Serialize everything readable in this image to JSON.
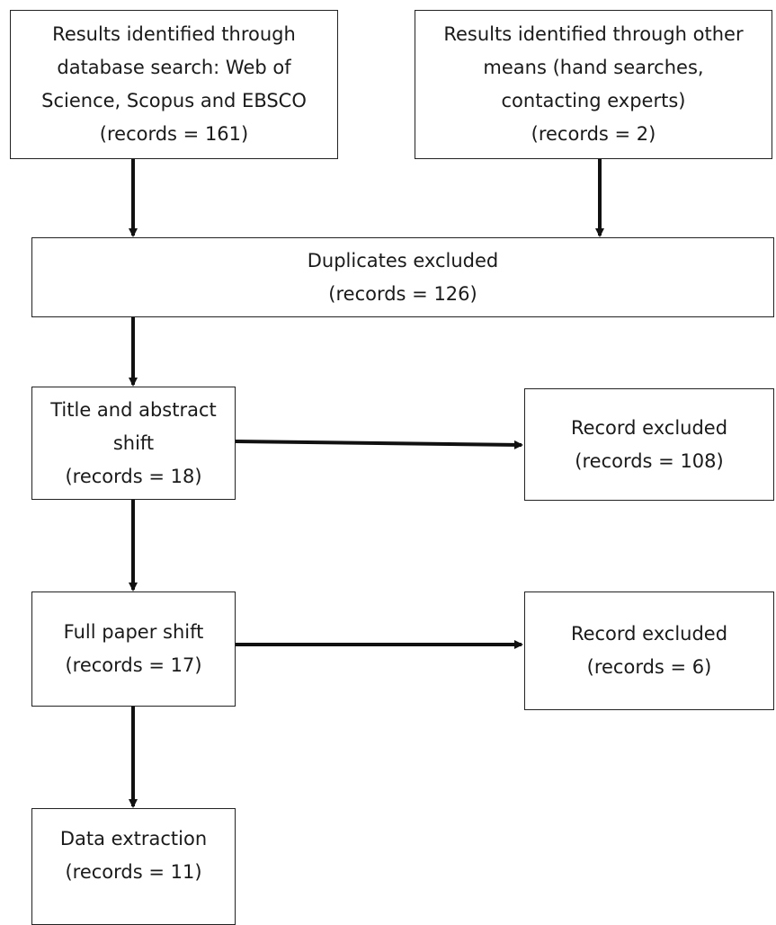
{
  "flowchart": {
    "database_search": {
      "lines": [
        "Results identified through",
        "database search: Web of",
        "Science, Scopus and EBSCO",
        "(records = 161)"
      ]
    },
    "other_means": {
      "lines": [
        "Results identified through other",
        "means  (hand searches,",
        "contacting experts)",
        "(records = 2)"
      ]
    },
    "duplicates": {
      "lines": [
        "Duplicates excluded",
        "(records = 126)"
      ]
    },
    "title_abstract": {
      "lines": [
        "Title and abstract",
        "shift",
        "(records = 18)"
      ]
    },
    "record_excluded_1": {
      "lines": [
        "Record excluded",
        "(records = 108)"
      ]
    },
    "full_paper": {
      "lines": [
        "Full paper shift",
        "(records = 17)"
      ]
    },
    "record_excluded_2": {
      "lines": [
        "Record excluded",
        "(records = 6)"
      ]
    },
    "data_extraction": {
      "lines": [
        "Data extraction",
        "(records = 11)"
      ]
    }
  }
}
